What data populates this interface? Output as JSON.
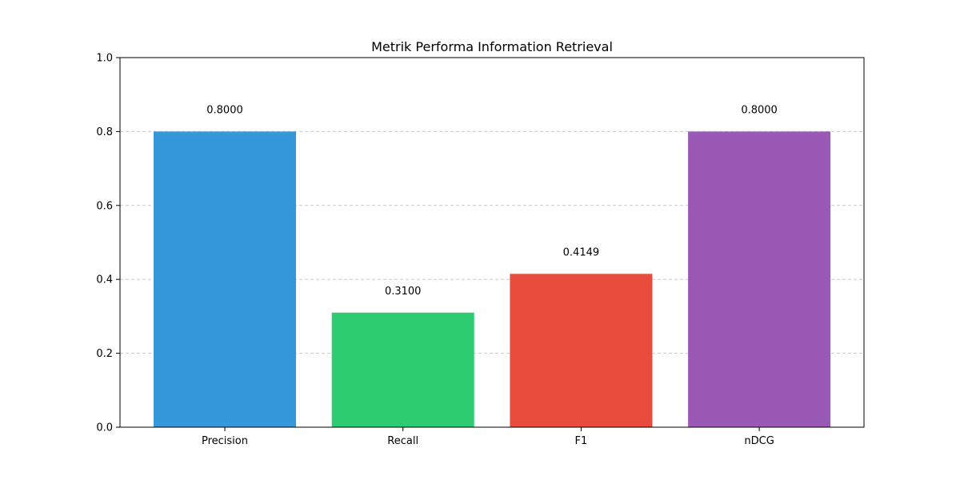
{
  "chart_data": {
    "type": "bar",
    "title": "Metrik Performa Information Retrieval",
    "xlabel": "",
    "ylabel": "",
    "categories": [
      "Precision",
      "Recall",
      "F1",
      "nDCG"
    ],
    "values": [
      0.8,
      0.31,
      0.4149,
      0.8
    ],
    "data_labels": [
      "0.8000",
      "0.3100",
      "0.4149",
      "0.8000"
    ],
    "colors": [
      "#3498db",
      "#2ecc71",
      "#e74c3c",
      "#9b59b6"
    ],
    "ylim": [
      0,
      1.0
    ],
    "yticks": [
      0.0,
      0.2,
      0.4,
      0.6,
      0.8,
      1.0
    ],
    "ytick_labels": [
      "0.0",
      "0.2",
      "0.4",
      "0.6",
      "0.8",
      "1.0"
    ],
    "grid": "y-dashed",
    "legend": "none"
  }
}
